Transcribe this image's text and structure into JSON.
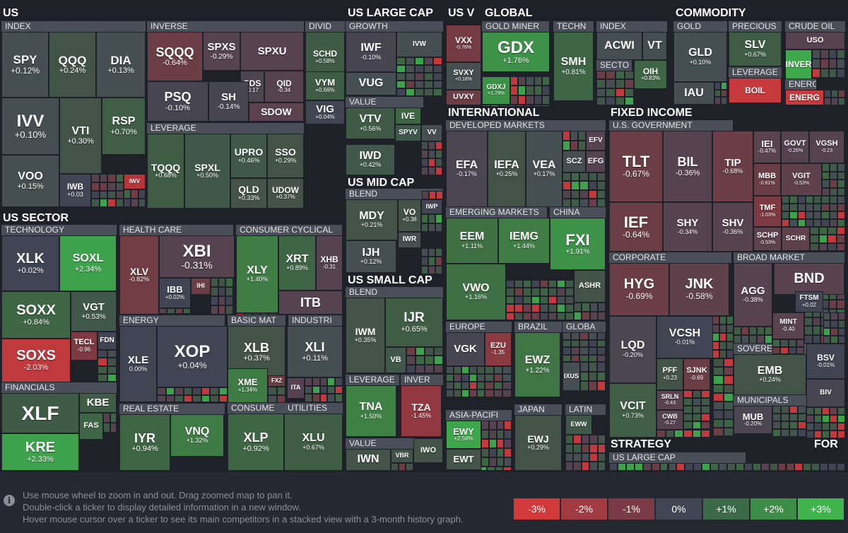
{
  "groups": [
    {
      "name": "US"
    },
    {
      "name": "US SECTOR"
    },
    {
      "name": "US LARGE CAP"
    },
    {
      "name": "US V"
    },
    {
      "name": "GLOBAL"
    },
    {
      "name": "COMMODITY"
    },
    {
      "name": "INTERNATIONAL"
    },
    {
      "name": "FIXED INCOME"
    },
    {
      "name": "US MID CAP"
    },
    {
      "name": "US SMALL CAP"
    },
    {
      "name": "STRATEGY"
    },
    {
      "name": "FOR"
    }
  ],
  "subs": [
    {
      "name": "INDEX"
    },
    {
      "name": "INVERSE"
    },
    {
      "name": "DIVID"
    },
    {
      "name": "LEVERAGE"
    },
    {
      "name": "TECHNOLOGY"
    },
    {
      "name": "HEALTH CARE"
    },
    {
      "name": "CONSUMER CYCLICAL"
    },
    {
      "name": "ENERGY"
    },
    {
      "name": "BASIC MAT"
    },
    {
      "name": "INDUSTRI"
    },
    {
      "name": "FINANCIALS"
    },
    {
      "name": "REAL ESTATE"
    },
    {
      "name": "CONSUME"
    },
    {
      "name": "UTILITIES"
    },
    {
      "name": "GROWTH"
    },
    {
      "name": "VALUE"
    },
    {
      "name": "BLEND"
    },
    {
      "name": "BLEND"
    },
    {
      "name": "LEVERAGE"
    },
    {
      "name": "INVER"
    },
    {
      "name": "VALUE"
    },
    {
      "name": "GOLD MINER"
    },
    {
      "name": "TECHN"
    },
    {
      "name": "INDEX"
    },
    {
      "name": "SECTO"
    },
    {
      "name": "GOLD"
    },
    {
      "name": "PRECIOUS"
    },
    {
      "name": "CRUDE OIL"
    },
    {
      "name": "INVER"
    },
    {
      "name": "LEVERAGE"
    },
    {
      "name": "ENERG"
    },
    {
      "name": "DEVELOPED MARKETS"
    },
    {
      "name": "EMERGING MARKETS"
    },
    {
      "name": "CHINA"
    },
    {
      "name": "EUROPE"
    },
    {
      "name": "BRAZIL"
    },
    {
      "name": "GLOBA"
    },
    {
      "name": "ASIA-PACIFI"
    },
    {
      "name": "JAPAN"
    },
    {
      "name": "LATIN"
    },
    {
      "name": "U.S. GOVERNMENT"
    },
    {
      "name": "CORPORATE"
    },
    {
      "name": "BROAD MARKET"
    },
    {
      "name": "SOVEREIGN"
    },
    {
      "name": "MUNICIPALS"
    },
    {
      "name": "US LARGE CAP"
    }
  ],
  "tiles": [
    {
      "ticker": "SPY",
      "change": "+0.12%",
      "color": "#454e50"
    },
    {
      "ticker": "QQQ",
      "change": "+0.24%",
      "color": "#445348"
    },
    {
      "ticker": "DIA",
      "change": "+0.13%",
      "color": "#454e50"
    },
    {
      "ticker": "IVV",
      "change": "+0.10%",
      "color": "#454e50"
    },
    {
      "ticker": "VTI",
      "change": "+0.30%",
      "color": "#445348"
    },
    {
      "ticker": "RSP",
      "change": "+0.70%",
      "color": "#3f5e45"
    },
    {
      "ticker": "VOO",
      "change": "+0.15%",
      "color": "#454e50"
    },
    {
      "ticker": "IWB",
      "change": "+0.03",
      "color": "#414553"
    },
    {
      "ticker": "IWV",
      "change": "",
      "color": "#b63538"
    },
    {
      "ticker": "SQQQ",
      "change": "-0.64%",
      "color": "#6b3d44"
    },
    {
      "ticker": "SPXS",
      "change": "-0.29%",
      "color": "#554350"
    },
    {
      "ticker": "SPXU",
      "change": "",
      "color": "#574350"
    },
    {
      "ticker": "SDS",
      "change": "-0.17",
      "color": "#4c4552"
    },
    {
      "ticker": "QID",
      "change": "-0.34",
      "color": "#574350"
    },
    {
      "ticker": "PSQ",
      "change": "-0.10%",
      "color": "#474552"
    },
    {
      "ticker": "SH",
      "change": "-0.14%",
      "color": "#484552"
    },
    {
      "ticker": "SDOW",
      "change": "",
      "color": "#5b434e"
    },
    {
      "ticker": "SCHD",
      "change": "+0.58%",
      "color": "#3f5b46"
    },
    {
      "ticker": "VYM",
      "change": "+0.66%",
      "color": "#3f5d45"
    },
    {
      "ticker": "VIG",
      "change": "+0.04%",
      "color": "#414553"
    },
    {
      "ticker": "TQQQ",
      "change": "+0.68%",
      "color": "#3f5d45"
    },
    {
      "ticker": "SPXL",
      "change": "+0.50%",
      "color": "#40584a"
    },
    {
      "ticker": "UPRO",
      "change": "+0.46%",
      "color": "#40584a"
    },
    {
      "ticker": "SSO",
      "change": "+0.29%",
      "color": "#445348"
    },
    {
      "ticker": "QLD",
      "change": "+0.33%",
      "color": "#445348"
    },
    {
      "ticker": "UDOW",
      "change": "+0.37%",
      "color": "#445348"
    },
    {
      "ticker": "XLK",
      "change": "+0.02%",
      "color": "#414553"
    },
    {
      "ticker": "SOXL",
      "change": "+2.34%",
      "color": "#3da24b"
    },
    {
      "ticker": "SOXX",
      "change": "+0.84%",
      "color": "#3f6644"
    },
    {
      "ticker": "VGT",
      "change": "+0.53%",
      "color": "#40584a"
    },
    {
      "ticker": "TECL",
      "change": "-0.96",
      "color": "#7d3a41"
    },
    {
      "ticker": "FDN",
      "change": "",
      "color": "#414553"
    },
    {
      "ticker": "SOXS",
      "change": "-2.03%",
      "color": "#c0393c"
    },
    {
      "ticker": "XLV",
      "change": "-0.82%",
      "color": "#713c42"
    },
    {
      "ticker": "XBI",
      "change": "-0.31%",
      "color": "#554350"
    },
    {
      "ticker": "IBB",
      "change": "+0.02%",
      "color": "#414553"
    },
    {
      "ticker": "IHI",
      "change": "",
      "color": "#6b3d44"
    },
    {
      "ticker": "XLY",
      "change": "+1.40%",
      "color": "#3f7d44"
    },
    {
      "ticker": "XRT",
      "change": "+0.89%",
      "color": "#3f6644"
    },
    {
      "ticker": "XHB",
      "change": "-0.31",
      "color": "#554350"
    },
    {
      "ticker": "ITB",
      "change": "",
      "color": "#554350"
    },
    {
      "ticker": "XLE",
      "change": "0.00%",
      "color": "#414553"
    },
    {
      "ticker": "XOP",
      "change": "+0.04%",
      "color": "#414553"
    },
    {
      "ticker": "XLB",
      "change": "+0.37%",
      "color": "#445348"
    },
    {
      "ticker": "XME",
      "change": "+1.34%",
      "color": "#3f7b44"
    },
    {
      "ticker": "FXZ",
      "change": "",
      "color": "#6b3d44"
    },
    {
      "ticker": "XLI",
      "change": "+0.11%",
      "color": "#454e50"
    },
    {
      "ticker": "ITA",
      "change": "",
      "color": "#554350"
    },
    {
      "ticker": "XLF",
      "change": "",
      "color": "#3f5b46"
    },
    {
      "ticker": "KBE",
      "change": "",
      "color": "#3f5d45"
    },
    {
      "ticker": "FAS",
      "change": "",
      "color": "#3f6644"
    },
    {
      "ticker": "KRE",
      "change": "+2.33%",
      "color": "#3da24b"
    },
    {
      "ticker": "IYR",
      "change": "+0.94%",
      "color": "#3f6644"
    },
    {
      "ticker": "VNQ",
      "change": "+1.32%",
      "color": "#3f7b44"
    },
    {
      "ticker": "XLP",
      "change": "+0.92%",
      "color": "#3f6644"
    },
    {
      "ticker": "XLU",
      "change": "+0.67%",
      "color": "#3f5d45"
    },
    {
      "ticker": "IWF",
      "change": "-0.10%",
      "color": "#474552"
    },
    {
      "ticker": "IVW",
      "change": "",
      "color": "#454e50"
    },
    {
      "ticker": "VUG",
      "change": "",
      "color": "#454e50"
    },
    {
      "ticker": "VTV",
      "change": "+0.56%",
      "color": "#3f5b46"
    },
    {
      "ticker": "IVE",
      "change": "",
      "color": "#3f6644"
    },
    {
      "ticker": "SPYV",
      "change": "",
      "color": "#40584a"
    },
    {
      "ticker": "VV",
      "change": "",
      "color": "#454e50"
    },
    {
      "ticker": "IWD",
      "change": "+0.42%",
      "color": "#40584a"
    },
    {
      "ticker": "MDY",
      "change": "+0.21%",
      "color": "#445348"
    },
    {
      "ticker": "VO",
      "change": "+0.38",
      "color": "#445348"
    },
    {
      "ticker": "IWP",
      "change": "",
      "color": "#414553"
    },
    {
      "ticker": "IWR",
      "change": "",
      "color": "#454e50"
    },
    {
      "ticker": "IJH",
      "change": "+0.12%",
      "color": "#454e50"
    },
    {
      "ticker": "IWM",
      "change": "+0.35%",
      "color": "#445348"
    },
    {
      "ticker": "IJR",
      "change": "+0.65%",
      "color": "#3f5d45"
    },
    {
      "ticker": "VB",
      "change": "",
      "color": "#40584a"
    },
    {
      "ticker": "TNA",
      "change": "+1.50%",
      "color": "#3f8044"
    },
    {
      "ticker": "TZA",
      "change": "-1.45%",
      "color": "#923841"
    },
    {
      "ticker": "IWN",
      "change": "",
      "color": "#445348"
    },
    {
      "ticker": "VBR",
      "change": "",
      "color": "#445348"
    },
    {
      "ticker": "IWO",
      "change": "",
      "color": "#445348"
    },
    {
      "ticker": "VXX",
      "change": "-0.76%",
      "color": "#753b42"
    },
    {
      "ticker": "SVXY",
      "change": "+0.18%",
      "color": "#454e50"
    },
    {
      "ticker": "UVXY",
      "change": "",
      "color": "#6b3d44"
    },
    {
      "ticker": "GDX",
      "change": "+1.76%",
      "color": "#3d9148"
    },
    {
      "ticker": "GDXJ",
      "change": "+1.79%",
      "color": "#3d9148"
    },
    {
      "ticker": "SMH",
      "change": "+0.81%",
      "color": "#3f6644"
    },
    {
      "ticker": "ACWI",
      "change": "",
      "color": "#454e50"
    },
    {
      "ticker": "VT",
      "change": "",
      "color": "#454e50"
    },
    {
      "ticker": "OIH",
      "change": "+0.83%",
      "color": "#3f6644"
    },
    {
      "ticker": "GLD",
      "change": "+0.10%",
      "color": "#454e50"
    },
    {
      "ticker": "IAU",
      "change": "",
      "color": "#454e50"
    },
    {
      "ticker": "SLV",
      "change": "+0.67%",
      "color": "#3f5d45"
    },
    {
      "ticker": "USO",
      "change": "",
      "color": "#574350"
    },
    {
      "ticker": "INVER",
      "change": "",
      "color": "#3fa84b"
    },
    {
      "ticker": "BOIL",
      "change": "",
      "color": "#c73a3d"
    },
    {
      "ticker": "ENERG",
      "change": "",
      "color": "#c73a3d"
    },
    {
      "ticker": "EFA",
      "change": "-0.17%",
      "color": "#4c4552"
    },
    {
      "ticker": "IEFA",
      "change": "+0.25%",
      "color": "#445348"
    },
    {
      "ticker": "VEA",
      "change": "+0.17%",
      "color": "#454e50"
    },
    {
      "ticker": "EFV",
      "change": "",
      "color": "#574350"
    },
    {
      "ticker": "SCZ",
      "change": "",
      "color": "#454e50"
    },
    {
      "ticker": "EFG",
      "change": "",
      "color": "#554350"
    },
    {
      "ticker": "EEM",
      "change": "+1.11%",
      "color": "#3f7044"
    },
    {
      "ticker": "IEMG",
      "change": "+1.44%",
      "color": "#3f7d44"
    },
    {
      "ticker": "VWO",
      "change": "+1.16%",
      "color": "#3f7044"
    },
    {
      "ticker": "FXI",
      "change": "+1.91%",
      "color": "#3d9148"
    },
    {
      "ticker": "ASHR",
      "change": "",
      "color": "#445348"
    },
    {
      "ticker": "VGK",
      "change": "",
      "color": "#474552"
    },
    {
      "ticker": "EZU",
      "change": "-1.35",
      "color": "#8b3941"
    },
    {
      "ticker": "EWZ",
      "change": "+1.22%",
      "color": "#3f7444"
    },
    {
      "ticker": "IXUS",
      "change": "",
      "color": "#454e50"
    },
    {
      "ticker": "EWY",
      "change": "+2.56%",
      "color": "#3da64b"
    },
    {
      "ticker": "EWT",
      "change": "",
      "color": "#445348"
    },
    {
      "ticker": "EWJ",
      "change": "+0.29%",
      "color": "#445348"
    },
    {
      "ticker": "EWW",
      "change": "",
      "color": "#40584a"
    },
    {
      "ticker": "TLT",
      "change": "-0.67%",
      "color": "#6b3d44"
    },
    {
      "ticker": "BIL",
      "change": "-0.36%",
      "color": "#574350"
    },
    {
      "ticker": "TIP",
      "change": "-0.68%",
      "color": "#6b3d44"
    },
    {
      "ticker": "IEI",
      "change": "-0.47%",
      "color": "#5b434e"
    },
    {
      "ticker": "GOVT",
      "change": "-0.26%",
      "color": "#554350"
    },
    {
      "ticker": "VGSH",
      "change": "-0.23",
      "color": "#554350"
    },
    {
      "ticker": "MBB",
      "change": "-0.61%",
      "color": "#6b3d44"
    },
    {
      "ticker": "VGIT",
      "change": "-0.53%",
      "color": "#5f414b"
    },
    {
      "ticker": "IEF",
      "change": "-0.64%",
      "color": "#6b3d44"
    },
    {
      "ticker": "SHY",
      "change": "-0.34%",
      "color": "#574350"
    },
    {
      "ticker": "SHV",
      "change": "-0.36%",
      "color": "#574350"
    },
    {
      "ticker": "TMF",
      "change": "-1.03%",
      "color": "#7d3a41"
    },
    {
      "ticker": "SCHP",
      "change": "-0.53%",
      "color": "#5f414b"
    },
    {
      "ticker": "SCHR",
      "change": "",
      "color": "#5f414b"
    },
    {
      "ticker": "HYG",
      "change": "-0.69%",
      "color": "#6b3d44"
    },
    {
      "ticker": "JNK",
      "change": "-0.58%",
      "color": "#5f414b"
    },
    {
      "ticker": "LQD",
      "change": "-0.20%",
      "color": "#4c4552"
    },
    {
      "ticker": "VCSH",
      "change": "-0.01%",
      "color": "#414553"
    },
    {
      "ticker": "PFF",
      "change": "+0.23",
      "color": "#445348"
    },
    {
      "ticker": "SJNK",
      "change": "-0.69",
      "color": "#6b3d44"
    },
    {
      "ticker": "SRLN",
      "change": "-0.43",
      "color": "#5b434e"
    },
    {
      "ticker": "CWB",
      "change": "-0.27",
      "color": "#554350"
    },
    {
      "ticker": "VCIT",
      "change": "+0.73%",
      "color": "#3f5e45"
    },
    {
      "ticker": "BND",
      "change": "",
      "color": "#5b434e"
    },
    {
      "ticker": "AGG",
      "change": "-0.38%",
      "color": "#574350"
    },
    {
      "ticker": "FTSM",
      "change": "+0.02",
      "color": "#414553"
    },
    {
      "ticker": "MINT",
      "change": "-0.40",
      "color": "#5b434e"
    },
    {
      "ticker": "EMB",
      "change": "+0.24%",
      "color": "#445348"
    },
    {
      "ticker": "BSV",
      "change": "-0.01%",
      "color": "#414553"
    },
    {
      "ticker": "BIV",
      "change": "",
      "color": "#474552"
    },
    {
      "ticker": "MUB",
      "change": "-0.20%",
      "color": "#4c4552"
    }
  ],
  "help_lines": [
    "Use mouse wheel to zoom in and out. Drag zoomed map to pan it.",
    "Double-click a ticker to display detailed information in a new window.",
    "Hover mouse cursor over a ticker to see its main competitors in a stacked view with a 3-month history graph."
  ],
  "legend": [
    {
      "label": "-3%",
      "color": "#d1393a"
    },
    {
      "label": "-2%",
      "color": "#a13c43"
    },
    {
      "label": "-1%",
      "color": "#7a3b45"
    },
    {
      "label": "0%",
      "color": "#414553"
    },
    {
      "label": "+1%",
      "color": "#3c6a49"
    },
    {
      "label": "+2%",
      "color": "#3d8c47"
    },
    {
      "label": "+3%",
      "color": "#3fb44d"
    }
  ],
  "filler_palette": [
    "#454e50",
    "#414553",
    "#40584a",
    "#3f5d45",
    "#554350",
    "#6b3d44",
    "#3f6644",
    "#c0393c",
    "#3da24b",
    "#445348"
  ]
}
